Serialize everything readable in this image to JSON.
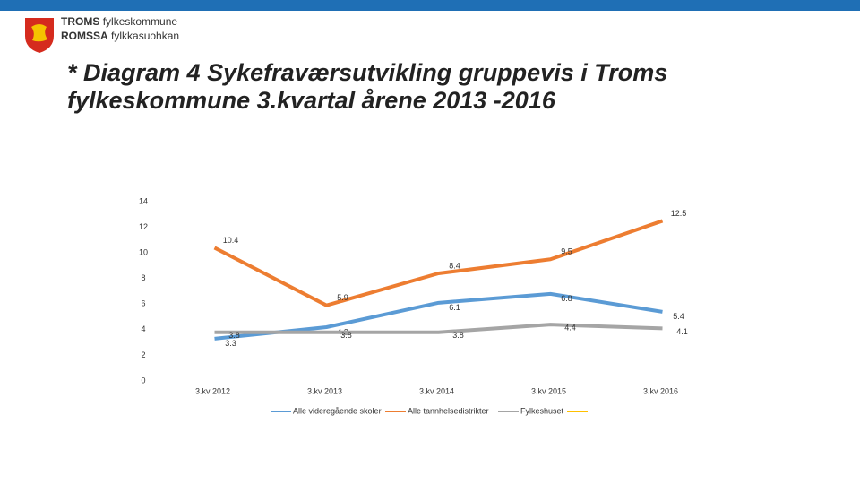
{
  "header": {
    "name1": "TROMS",
    "sub1": "fylkeskommune",
    "name2": "ROMSSA",
    "sub2": "fylkkasuohkan"
  },
  "chart_data": {
    "type": "line",
    "title": "* Diagram 4 Sykefraværsutvikling gruppevis i Troms fylkeskommune 3.kvartal årene 2013 -2016",
    "categories": [
      "3.kv 2012",
      "3.kv 2013",
      "3.kv 2014",
      "3.kv 2015",
      "3.kv 2016"
    ],
    "series": [
      {
        "name": "Alle videregående skoler",
        "color": "#5b9bd5",
        "values": [
          3.3,
          4.2,
          6.1,
          6.8,
          5.4
        ]
      },
      {
        "name": "Alle tannhelsedistrikter",
        "color": "#ed7d31",
        "values": [
          10.4,
          5.9,
          8.4,
          9.5,
          12.5
        ]
      },
      {
        "name": "Fylkeshuset",
        "color": "#a5a5a5",
        "values": [
          3.8,
          3.8,
          3.8,
          4.4,
          4.1
        ]
      }
    ],
    "ylim": [
      0,
      14
    ],
    "yticks": [
      0,
      2,
      4,
      6,
      8,
      10,
      12,
      14
    ],
    "grid": false,
    "legend": "bottom"
  }
}
